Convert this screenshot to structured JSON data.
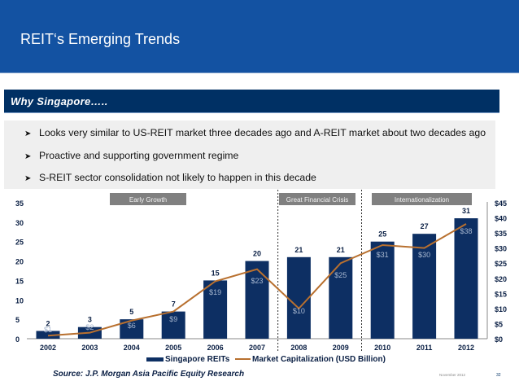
{
  "slide": {
    "title": "REIT‘s Emerging Trends",
    "section_header": "Why Singapore…..",
    "bullets": [
      "Looks very similar to US-REIT market three decades ago and A-REIT market about two decades ago",
      "Proactive and supporting government regime",
      "S-REIT sector consolidation not likely to happen in this decade"
    ],
    "bullet_icon": "arrow-bullet-icon",
    "source": "Source: J.P. Morgan Asia Pacific Equity Research",
    "footer_date": "November 2012",
    "page_number": "32"
  },
  "colors": {
    "title_bar": "#1352a2",
    "section_bar": "#003064",
    "bar": "#0d2f63",
    "line": "#b8702f",
    "phase_label_bg": "#808080"
  },
  "chart_data": {
    "type": "bar",
    "title": "",
    "categories": [
      "2002",
      "2003",
      "2004",
      "2005",
      "2006",
      "2007",
      "2008",
      "2009",
      "2010",
      "2011",
      "2012"
    ],
    "series": [
      {
        "name": "Singapore REITs",
        "type": "bar",
        "axis": "left",
        "values": [
          2,
          3,
          5,
          7,
          15,
          20,
          21,
          21,
          25,
          27,
          31
        ],
        "labels": [
          "2",
          "3",
          "5",
          "7",
          "15",
          "20",
          "21",
          "21",
          "25",
          "27",
          "31"
        ]
      },
      {
        "name": "Market Capitalization (USD Billion)",
        "type": "line",
        "axis": "right",
        "values": [
          1,
          2,
          6,
          9,
          19,
          23,
          10,
          25,
          31,
          30,
          38
        ],
        "labels": [
          "$1",
          "$2",
          "$6",
          "$9",
          "$19",
          "$23",
          "$10",
          "$25",
          "$31",
          "$30",
          "$38"
        ]
      }
    ],
    "left_axis": {
      "ylim": [
        0,
        35
      ],
      "ticks": [
        "0",
        "5",
        "10",
        "15",
        "20",
        "25",
        "30",
        "35"
      ]
    },
    "right_axis": {
      "ylim": [
        0,
        45
      ],
      "ticks": [
        "$0",
        "$5",
        "$10",
        "$15",
        "$20",
        "$25",
        "$30",
        "$35",
        "$40",
        "$45"
      ]
    },
    "phases": [
      {
        "label": "Early Growth",
        "from": "2002",
        "to": "2007"
      },
      {
        "label": "Great Financial Crisis",
        "from": "2008",
        "to": "2009"
      },
      {
        "label": "Internationalization",
        "from": "2010",
        "to": "2012"
      }
    ],
    "legend_position": "bottom",
    "grid": false
  }
}
